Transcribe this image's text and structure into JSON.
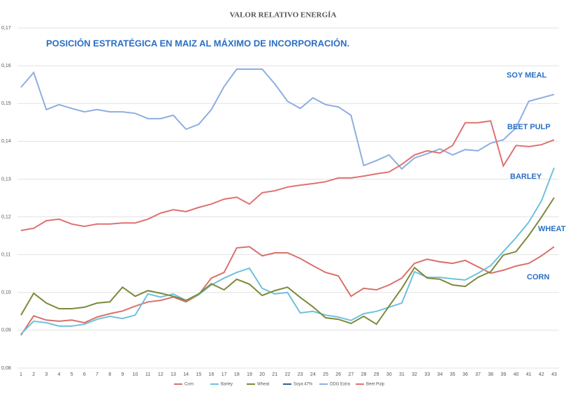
{
  "chart_data": {
    "type": "line",
    "title": "VALOR RELATIVO ENERGÍA",
    "subtitle": "POSICIÓN ESTRATÉGICA EN MAIZ AL MÁXIMO DE INCORPORACIÓN.",
    "annotations": [
      "SOY MEAL",
      "BEET PULP",
      "BARLEY",
      "WHEAT",
      "CORN"
    ],
    "categories": [
      "1",
      "2",
      "3",
      "4",
      "5",
      "6",
      "7",
      "8",
      "9",
      "10",
      "11",
      "12",
      "13",
      "14",
      "15",
      "16",
      "17",
      "18",
      "19",
      "20",
      "21",
      "22",
      "23",
      "24",
      "25",
      "26",
      "27",
      "28",
      "29",
      "30",
      "31",
      "32",
      "33",
      "34",
      "35",
      "36",
      "37",
      "38",
      "39",
      "40",
      "41",
      "42",
      "43"
    ],
    "ylim": [
      0.08,
      0.17
    ],
    "yticks": [
      {
        "value": 0.08,
        "label": "0,08"
      },
      {
        "value": 0.09,
        "label": "0,09"
      },
      {
        "value": 0.1,
        "label": "0,10"
      },
      {
        "value": 0.11,
        "label": "0,11"
      },
      {
        "value": 0.12,
        "label": "0,12"
      },
      {
        "value": 0.13,
        "label": "0,13"
      },
      {
        "value": 0.14,
        "label": "0,14"
      },
      {
        "value": 0.15,
        "label": "0,15"
      },
      {
        "value": 0.16,
        "label": "0,16"
      },
      {
        "value": 0.17,
        "label": "0,17"
      }
    ],
    "grid": true,
    "legend": "bottom",
    "series": [
      {
        "name": "Corn",
        "color": "#d9706a",
        "values": [
          0.0887,
          0.0938,
          0.0927,
          0.0924,
          0.0927,
          0.092,
          0.0935,
          0.0944,
          0.0951,
          0.0964,
          0.0975,
          0.0979,
          0.0988,
          0.0975,
          0.0994,
          0.1038,
          0.1053,
          0.1118,
          0.1121,
          0.1097,
          0.1105,
          0.1105,
          0.109,
          0.1071,
          0.1053,
          0.1044,
          0.099,
          0.1011,
          0.1007,
          0.102,
          0.1038,
          0.1077,
          0.1088,
          0.1081,
          0.1077,
          0.1085,
          0.1068,
          0.1051,
          0.1059,
          0.107,
          0.1077,
          0.1097,
          0.1121
        ]
      },
      {
        "name": "Barley",
        "color": "#6ec1dd",
        "values": [
          0.089,
          0.0924,
          0.092,
          0.0911,
          0.0911,
          0.0916,
          0.0929,
          0.0937,
          0.0931,
          0.094,
          0.0996,
          0.0988,
          0.0996,
          0.0979,
          0.0994,
          0.102,
          0.1038,
          0.1053,
          0.1064,
          0.1011,
          0.0996,
          0.1,
          0.0946,
          0.095,
          0.094,
          0.0935,
          0.0926,
          0.0944,
          0.095,
          0.0961,
          0.0972,
          0.1055,
          0.104,
          0.104,
          0.1036,
          0.1033,
          0.1051,
          0.1071,
          0.1108,
          0.1145,
          0.1186,
          0.1242,
          0.133
        ]
      },
      {
        "name": "Wheat",
        "color": "#7a8a3a",
        "values": [
          0.094,
          0.0998,
          0.0972,
          0.0957,
          0.0957,
          0.0961,
          0.0972,
          0.0975,
          0.1014,
          0.099,
          0.1005,
          0.0998,
          0.099,
          0.0979,
          0.0996,
          0.1023,
          0.1007,
          0.1035,
          0.1022,
          0.0992,
          0.1005,
          0.1014,
          0.0987,
          0.0962,
          0.0933,
          0.0929,
          0.0918,
          0.0937,
          0.0916,
          0.0964,
          0.1011,
          0.1066,
          0.1038,
          0.1035,
          0.102,
          0.1016,
          0.104,
          0.1055,
          0.1099,
          0.1108,
          0.1151,
          0.1199,
          0.1251
        ]
      },
      {
        "name": "Soya 47%",
        "color": "#3a5a9a",
        "values": [
          null,
          null,
          null,
          null,
          null,
          null,
          null,
          null,
          null,
          null,
          null,
          null,
          null,
          null,
          null,
          null,
          null,
          null,
          null,
          null,
          null,
          null,
          null,
          null,
          null,
          null,
          null,
          null,
          null,
          null,
          null,
          null,
          null,
          null,
          null,
          null,
          null,
          null,
          null,
          null,
          null,
          null,
          null
        ]
      },
      {
        "name": "DDG Extra",
        "color": "#8eaee0",
        "values": [
          0.1543,
          0.1582,
          0.1484,
          0.1497,
          0.1487,
          0.1478,
          0.1484,
          0.1478,
          0.1478,
          0.1474,
          0.146,
          0.146,
          0.1469,
          0.1432,
          0.1445,
          0.1484,
          0.1545,
          0.1591,
          0.1591,
          0.1591,
          0.1552,
          0.1506,
          0.1487,
          0.1515,
          0.1497,
          0.1491,
          0.1469,
          0.1336,
          0.1349,
          0.1364,
          0.1327,
          0.1356,
          0.1367,
          0.138,
          0.1364,
          0.1378,
          0.1375,
          0.1395,
          0.1404,
          0.1436,
          0.1506,
          0.1515,
          0.1524
        ]
      },
      {
        "name": "Beet Pulp",
        "color": "#e07070",
        "values": [
          0.1164,
          0.117,
          0.119,
          0.1194,
          0.1181,
          0.1175,
          0.1181,
          0.1181,
          0.1184,
          0.1184,
          0.1194,
          0.121,
          0.1219,
          0.1214,
          0.1225,
          0.1234,
          0.1247,
          0.1252,
          0.1234,
          0.1264,
          0.1269,
          0.1279,
          0.1284,
          0.1288,
          0.1293,
          0.1303,
          0.1303,
          0.1308,
          0.1314,
          0.1319,
          0.1339,
          0.1364,
          0.1375,
          0.1369,
          0.1389,
          0.1449,
          0.1449,
          0.1454,
          0.1335,
          0.1389,
          0.1386,
          0.1391,
          0.1404
        ]
      }
    ]
  }
}
